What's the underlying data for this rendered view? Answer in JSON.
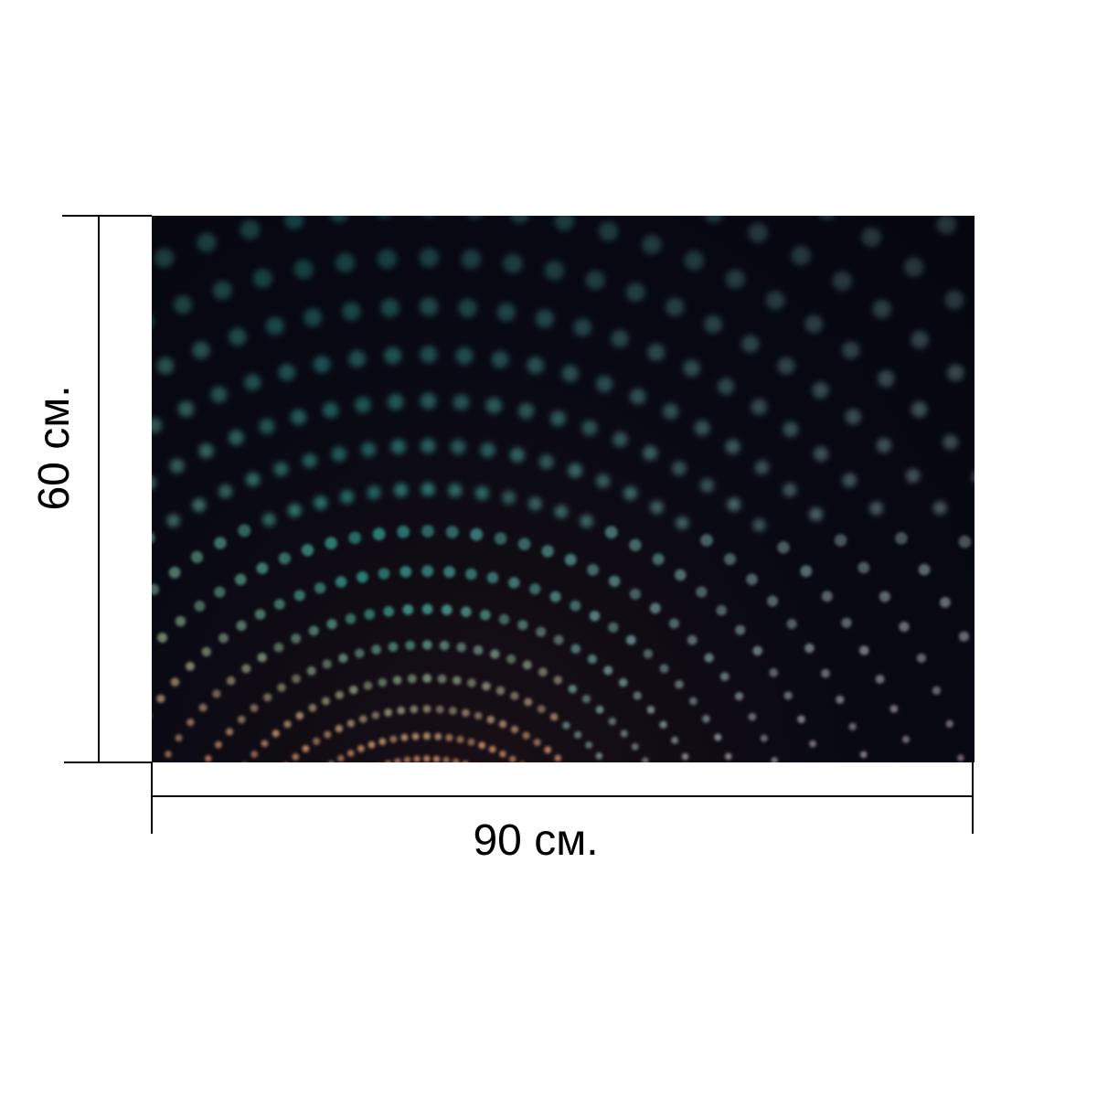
{
  "dimensions": {
    "width_label": "90 см.",
    "height_label": "60 см."
  },
  "colors": {
    "background": "#ffffff",
    "line": "#000000",
    "photo_dark": "#05060f",
    "dot_warm": "#f2a070",
    "dot_teal": "#3fe0c8",
    "dot_mauve": "#c49aa8"
  }
}
